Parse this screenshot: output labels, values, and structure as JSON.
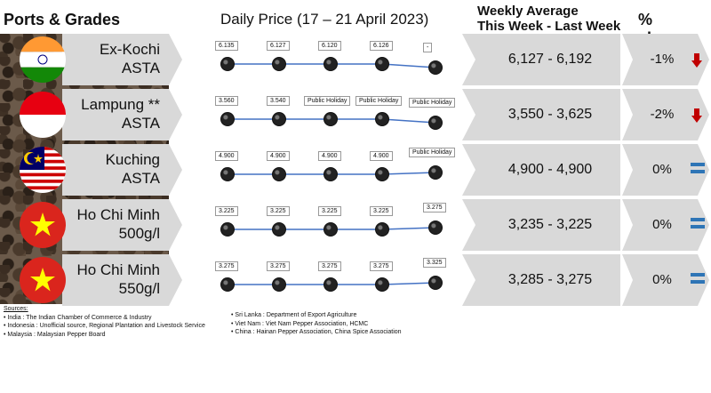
{
  "headers": {
    "ports_grades": "Ports & Grades",
    "daily_price": "Daily Price (17 – 21 April 2023)",
    "weekly_line1": "Weekly Average",
    "weekly_line2": "This Week - Last Week",
    "pct_change": "% change"
  },
  "rows": [
    {
      "grade_line1": "Ex-Kochi",
      "grade_line2": "ASTA",
      "flag": "india",
      "prices": [
        "6.135",
        "6.127",
        "6.120",
        "6.126",
        "-"
      ],
      "weekly": "6,127 - 6,192",
      "pct": "-1%",
      "trend": "down"
    },
    {
      "grade_line1": "Lampung **",
      "grade_line2": "ASTA",
      "flag": "indonesia",
      "prices": [
        "3.560",
        "3.540",
        "Public Holiday",
        "Public Holiday",
        "Public Holiday"
      ],
      "weekly": "3,550 - 3,625",
      "pct": "-2%",
      "trend": "down"
    },
    {
      "grade_line1": "Kuching",
      "grade_line2": "ASTA",
      "flag": "malaysia",
      "prices": [
        "4.900",
        "4.900",
        "4.900",
        "4.900",
        "Public Holiday"
      ],
      "weekly": "4,900 - 4,900",
      "pct": "0%",
      "trend": "equal"
    },
    {
      "grade_line1": "Ho Chi Minh",
      "grade_line2": "500g/l",
      "flag": "vietnam",
      "prices": [
        "3.225",
        "3.225",
        "3.225",
        "3.225",
        "3.275"
      ],
      "weekly": "3,235 - 3,225",
      "pct": "0%",
      "trend": "equal"
    },
    {
      "grade_line1": "Ho Chi Minh",
      "grade_line2": "550g/l",
      "flag": "vietnam",
      "prices": [
        "3.275",
        "3.275",
        "3.275",
        "3.275",
        "3.325"
      ],
      "weekly": "3,285 - 3,275",
      "pct": "0%",
      "trend": "equal"
    }
  ],
  "sources": {
    "title": "Sources:",
    "left": [
      "India : The Indian Chamber of Commerce & Industry",
      "Indonesia : Unofficial source, Regional Plantation and Livestock Service",
      "Malaysia : Malaysian Pepper Board"
    ],
    "right": [
      "Sri Lanka : Department of Export Agriculture",
      "Viet Nam : Viet Nam Pepper Association, HCMC",
      "China : Hainan Pepper Association, China Spice Association"
    ]
  },
  "colors": {
    "down_arrow": "#c00000",
    "equal_sign": "#2e75b6",
    "line": "#4472c4",
    "band": "#d9d9d9"
  }
}
